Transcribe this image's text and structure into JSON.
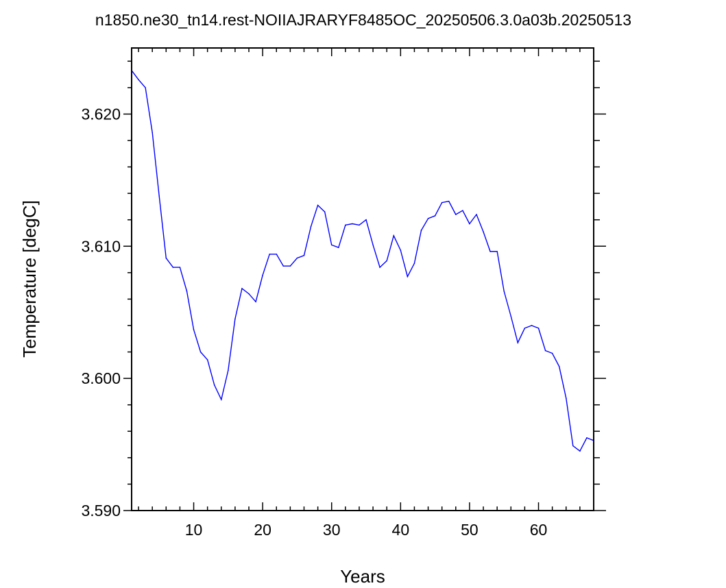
{
  "chart_data": {
    "type": "line",
    "title": "n1850.ne30_tn14.rest-NOIIAJRARYF8485OC_20250506.3.0a03b.20250513",
    "xlabel": "Years",
    "ylabel": "Temperature [degC]",
    "xlim": [
      1,
      68
    ],
    "ylim": [
      3.59,
      3.625
    ],
    "x_ticks": [
      10,
      20,
      30,
      40,
      50,
      60
    ],
    "x_tick_labels": [
      "10",
      "20",
      "30",
      "40",
      "50",
      "60"
    ],
    "y_ticks": [
      3.59,
      3.6,
      3.61,
      3.62
    ],
    "y_tick_labels": [
      "3.590",
      "3.600",
      "3.610",
      "3.620"
    ],
    "grid": false,
    "series": [
      {
        "color": "#0000ff",
        "x": [
          1,
          2,
          3,
          4,
          5,
          6,
          7,
          8,
          9,
          10,
          11,
          12,
          13,
          14,
          15,
          16,
          17,
          18,
          19,
          20,
          21,
          22,
          23,
          24,
          25,
          26,
          27,
          28,
          29,
          30,
          31,
          32,
          33,
          34,
          35,
          36,
          37,
          38,
          39,
          40,
          41,
          42,
          43,
          44,
          45,
          46,
          47,
          48,
          49,
          50,
          51,
          52,
          53,
          54,
          55,
          56,
          57,
          58,
          59,
          60,
          61,
          62,
          63,
          64,
          65,
          66,
          67,
          68
        ],
        "values": [
          3.6233,
          3.6226,
          3.622,
          3.6186,
          3.6138,
          3.6091,
          3.6084,
          3.6084,
          3.6066,
          3.6037,
          3.602,
          3.6014,
          3.5995,
          3.5984,
          3.6006,
          3.6045,
          3.6068,
          3.6064,
          3.6058,
          3.6078,
          3.6094,
          3.6094,
          3.6085,
          3.6085,
          3.6091,
          3.6093,
          3.6115,
          3.6131,
          3.6126,
          3.6101,
          3.6099,
          3.6116,
          3.6117,
          3.6116,
          3.612,
          3.6101,
          3.6084,
          3.6089,
          3.6108,
          3.6097,
          3.6077,
          3.6087,
          3.6112,
          3.6121,
          3.6123,
          3.6133,
          3.6134,
          3.6124,
          3.6127,
          3.6117,
          3.6124,
          3.6111,
          3.6096,
          3.6096,
          3.6066,
          3.6047,
          3.6027,
          3.6038,
          3.604,
          3.6038,
          3.6021,
          3.6019,
          3.6009,
          3.5985,
          3.5949,
          3.5945,
          3.5955,
          3.5953
        ]
      }
    ]
  }
}
